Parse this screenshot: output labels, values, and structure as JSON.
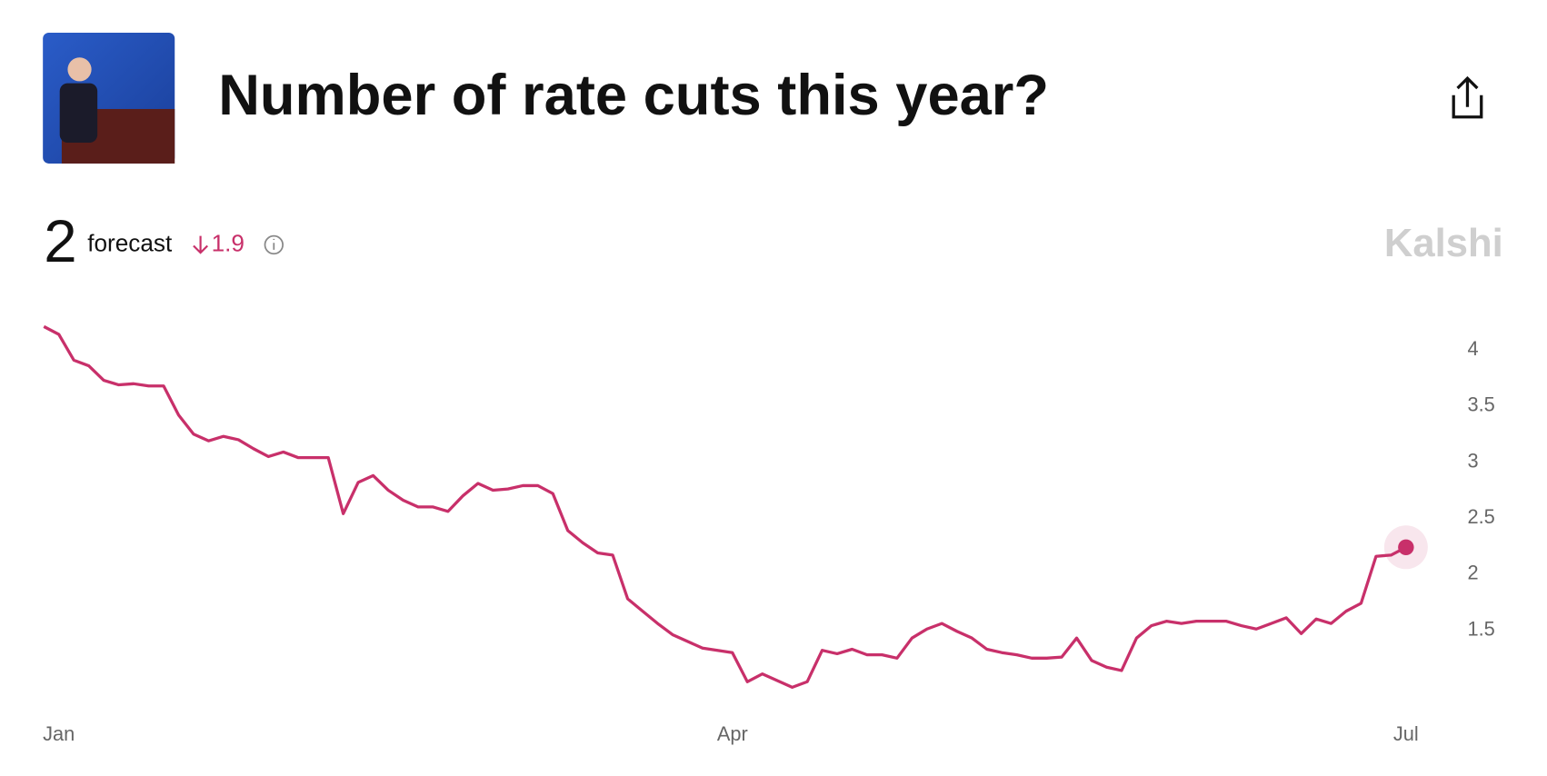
{
  "header": {
    "title": "Number of rate cuts this year?"
  },
  "forecast": {
    "value": 2,
    "label": "forecast",
    "change": 1.9
  },
  "brand": "Kalshi",
  "chart_data": {
    "type": "line",
    "color": "#c8306a",
    "grid": false,
    "categories": [
      null,
      "Jan",
      null,
      null,
      null,
      null,
      null,
      null,
      null,
      null,
      null,
      null,
      null,
      null,
      null,
      null,
      null,
      null,
      null,
      null,
      null,
      null,
      null,
      null,
      null,
      null,
      null,
      null,
      null,
      null,
      null,
      null,
      null,
      null,
      null,
      null,
      null,
      null,
      null,
      null,
      null,
      null,
      null,
      null,
      null,
      null,
      "Apr",
      null,
      null,
      null,
      null,
      null,
      null,
      null,
      null,
      null,
      null,
      null,
      null,
      null,
      null,
      null,
      null,
      null,
      null,
      null,
      null,
      null,
      null,
      null,
      null,
      null,
      null,
      null,
      null,
      null,
      null,
      null,
      null,
      null,
      null,
      null,
      null,
      null,
      null,
      null,
      null,
      null,
      null,
      null,
      null,
      "Jul"
    ],
    "values": [
      4.21,
      4.14,
      3.91,
      3.86,
      3.73,
      3.69,
      3.7,
      3.68,
      3.68,
      3.42,
      3.25,
      3.19,
      3.23,
      3.2,
      3.12,
      3.05,
      3.09,
      3.04,
      3.04,
      3.04,
      2.54,
      2.82,
      2.88,
      2.75,
      2.66,
      2.6,
      2.6,
      2.56,
      2.7,
      2.81,
      2.75,
      2.76,
      2.79,
      2.79,
      2.72,
      2.39,
      2.28,
      2.19,
      2.17,
      1.78,
      1.67,
      1.56,
      1.46,
      1.4,
      1.34,
      1.32,
      1.3,
      1.04,
      1.11,
      1.05,
      0.99,
      1.04,
      1.32,
      1.29,
      1.33,
      1.28,
      1.28,
      1.25,
      1.43,
      1.51,
      1.56,
      1.49,
      1.43,
      1.33,
      1.3,
      1.28,
      1.25,
      1.25,
      1.26,
      1.43,
      1.23,
      1.17,
      1.14,
      1.43,
      1.54,
      1.58,
      1.56,
      1.58,
      1.58,
      1.58,
      1.54,
      1.51,
      1.56,
      1.61,
      1.47,
      1.6,
      1.56,
      1.67,
      1.74,
      2.16,
      2.17,
      2.24
    ],
    "ylim": [
      0.8,
      4.25
    ],
    "yticks": [
      1.5,
      2,
      2.5,
      3,
      3.5,
      4
    ]
  }
}
